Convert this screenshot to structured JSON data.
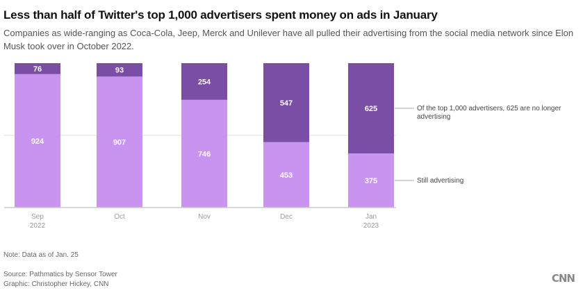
{
  "title": "Less than half of Twitter's top 1,000 advertisers spent money on ads in January",
  "subtitle": "Companies as wide-ranging as Coca-Cola, Jeep, Merck and Unilever have all pulled their advertising from the social media network since Elon Musk took over in October 2022.",
  "note": "Note: Data as of Jan. 25",
  "source": "Source: Pathmatics by Sensor Tower",
  "graphic": "Graphic: Christopher Hickey, CNN",
  "logo": "CNN",
  "colors": {
    "stopped": "#7b4ea6",
    "still": "#c894ef",
    "grid": "#dddddd",
    "axis": "#cccccc"
  },
  "chart_data": {
    "type": "bar",
    "stacked": true,
    "title": "Less than half of Twitter's top 1,000 advertisers spent money on ads in January",
    "categories": [
      [
        "Sep",
        "2022"
      ],
      [
        "Oct"
      ],
      [
        "Nov"
      ],
      [
        "Dec"
      ],
      [
        "Jan",
        "2023"
      ]
    ],
    "series": [
      {
        "name": "Still advertising",
        "values": [
          924,
          907,
          746,
          453,
          375
        ]
      },
      {
        "name": "No longer advertising",
        "values": [
          76,
          93,
          254,
          547,
          625
        ]
      }
    ],
    "ylim": [
      0,
      1000
    ],
    "gridlines": [
      500
    ],
    "annotations": [
      {
        "series": "No longer advertising",
        "text_lines": [
          "Of the top 1,000 advertisers, 625 are no longer",
          "advertising"
        ]
      },
      {
        "series": "Still advertising",
        "text_lines": [
          "Still advertising"
        ]
      }
    ],
    "xlabel": "",
    "ylabel": ""
  }
}
